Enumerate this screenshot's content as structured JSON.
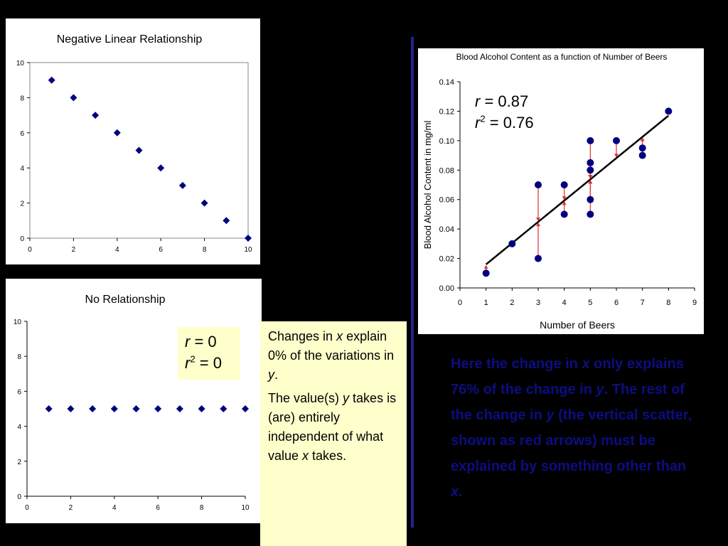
{
  "chart_data": [
    {
      "type": "scatter",
      "title": "Negative Linear Relationship",
      "xlim": [
        0,
        10
      ],
      "ylim": [
        0,
        10
      ],
      "xticks": [
        "0",
        "2",
        "4",
        "6",
        "8",
        "10"
      ],
      "yticks": [
        "0",
        "2",
        "4",
        "6",
        "8",
        "10"
      ],
      "x": [
        1,
        2,
        3,
        4,
        5,
        6,
        7,
        8,
        9,
        10
      ],
      "y": [
        9,
        8,
        7,
        6,
        5,
        4,
        3,
        2,
        1,
        0
      ],
      "marker_color": "#000080",
      "grid": false
    },
    {
      "type": "scatter",
      "title": "No Relationship",
      "xlim": [
        0,
        10
      ],
      "ylim": [
        0,
        10
      ],
      "xticks": [
        "0",
        "2",
        "4",
        "6",
        "8",
        "10"
      ],
      "yticks": [
        "0",
        "2",
        "4",
        "6",
        "8",
        "10"
      ],
      "x": [
        1,
        2,
        3,
        4,
        5,
        6,
        7,
        8,
        9,
        10
      ],
      "y": [
        5,
        5,
        5,
        5,
        5,
        5,
        5,
        5,
        5,
        5
      ],
      "marker_color": "#000080",
      "grid": false
    },
    {
      "type": "scatter",
      "title": "Blood Alcohol Content as a function of Number of Beers",
      "xlabel": "Number of Beers",
      "ylabel": "Blood Alcohol Content in mg/ml",
      "xlim": [
        0,
        9
      ],
      "ylim": [
        0,
        0.14
      ],
      "xticks": [
        "0",
        "1",
        "2",
        "3",
        "4",
        "5",
        "6",
        "7",
        "8",
        "9"
      ],
      "yticks": [
        "0.00",
        "0.02",
        "0.04",
        "0.06",
        "0.08",
        "0.10",
        "0.12",
        "0.14"
      ],
      "x": [
        1,
        2,
        3,
        3,
        4,
        4,
        5,
        5,
        5,
        5,
        5,
        6,
        7,
        7,
        8
      ],
      "y": [
        0.01,
        0.03,
        0.07,
        0.02,
        0.07,
        0.05,
        0.1,
        0.085,
        0.08,
        0.06,
        0.05,
        0.1,
        0.095,
        0.09,
        0.12
      ],
      "fit_line": {
        "x": [
          1,
          8
        ],
        "y": [
          0.016,
          0.117
        ]
      },
      "marker_color": "#000080",
      "line_color": "#000000",
      "residual_color": "#e03030",
      "grid": false
    }
  ],
  "stats_no_relationship": {
    "r_label": "r",
    "r_value": "= 0",
    "r2_label": "r",
    "r2_exp": "2",
    "r2_value": "= 0"
  },
  "stats_bac": {
    "r_label": "r",
    "r_value": "= 0.87",
    "r2_label": "r",
    "r2_exp": "2",
    "r2_value": "= 0.76"
  },
  "note_box": {
    "p1_a": "Changes in ",
    "p1_x": "x",
    "p1_b": " explain 0% of the variations in ",
    "p1_y": "y",
    "p1_c": ".",
    "p2_a": "The value(s) ",
    "p2_y": "y",
    "p2_b": " takes is (are) entirely independent of what value ",
    "p2_x": "x",
    "p2_c": " takes."
  },
  "explanation": {
    "a": "Here the change in ",
    "x1": "x",
    "b": " only explains 76% of the change in ",
    "y1": "y",
    "c": ". The rest of the change in ",
    "y2": "y",
    "d": " (the vertical scatter, shown as red arrows) must be explained by something other than ",
    "x2": "x",
    "e": "."
  }
}
